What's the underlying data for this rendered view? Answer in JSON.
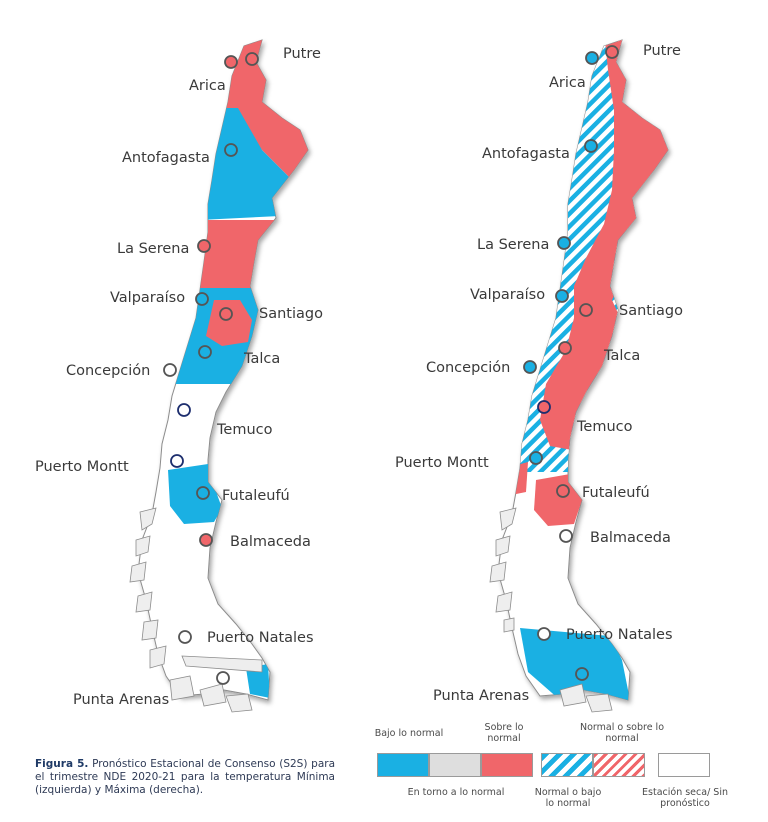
{
  "left_map": {
    "cities": [
      {
        "name": "Putre",
        "color": "red"
      },
      {
        "name": "Arica",
        "color": "red"
      },
      {
        "name": "Antofagasta",
        "color": "blue"
      },
      {
        "name": "La Serena",
        "color": "red"
      },
      {
        "name": "Valparaíso",
        "color": "blue"
      },
      {
        "name": "Santiago",
        "color": "red"
      },
      {
        "name": "Talca",
        "color": "blue"
      },
      {
        "name": "Concepción",
        "color": "white"
      },
      {
        "name": "Temuco",
        "color": "white-navy"
      },
      {
        "name": "Puerto Montt",
        "color": "white-navy"
      },
      {
        "name": "Futaleufú",
        "color": "blue"
      },
      {
        "name": "Balmaceda",
        "color": "red"
      },
      {
        "name": "Puerto Natales",
        "color": "white"
      },
      {
        "name": "Punta Arenas",
        "color": "white"
      }
    ]
  },
  "right_map": {
    "cities": [
      {
        "name": "Putre",
        "color": "red"
      },
      {
        "name": "Arica",
        "color": "blue"
      },
      {
        "name": "Antofagasta",
        "color": "blue"
      },
      {
        "name": "La Serena",
        "color": "blue"
      },
      {
        "name": "Valparaíso",
        "color": "blue"
      },
      {
        "name": "Santiago",
        "color": "red"
      },
      {
        "name": "Talca",
        "color": "red"
      },
      {
        "name": "Concepción",
        "color": "blue"
      },
      {
        "name": "Temuco",
        "color": "red-navy"
      },
      {
        "name": "Puerto Montt",
        "color": "blue"
      },
      {
        "name": "Futaleufú",
        "color": "red"
      },
      {
        "name": "Balmaceda",
        "color": "white"
      },
      {
        "name": "Puerto Natales",
        "color": "white"
      },
      {
        "name": "Punta Arenas",
        "color": "blue"
      }
    ]
  },
  "caption": {
    "label": "Figura 5.",
    "text": "Pronóstico Estacional de Consenso (S2S) para el trimestre NDE 2020-21 para la temperatura Mínima (izquierda) y Máxima (derecha)."
  },
  "legend": {
    "below": "Bajo lo normal",
    "near": "En torno a lo normal",
    "above": "Sobre lo normal",
    "normal_below": "Normal o bajo lo normal",
    "normal_above": "Normal o sobre lo normal",
    "dry": "Estación seca/ Sin pronóstico"
  },
  "colors": {
    "below": "#1ab0e3",
    "near": "#dedede",
    "above": "#f0666a",
    "navy": "#1d2e6e"
  }
}
